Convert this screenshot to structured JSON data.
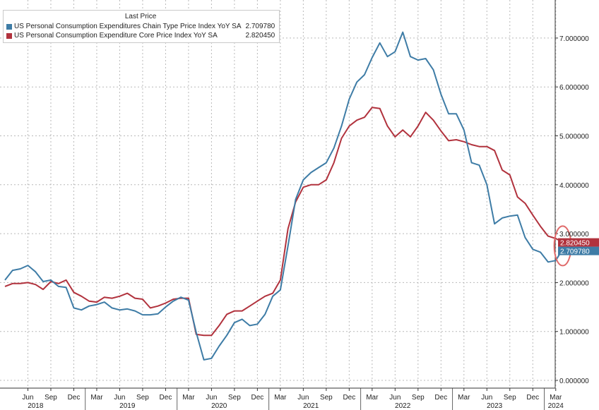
{
  "colors": {
    "headline": "#3e7ca6",
    "core": "#b1323d",
    "grid": "#b9b9b9",
    "highlight_circle": "#e06a6a"
  },
  "legend": {
    "header": "Last Price",
    "items": [
      {
        "name": "US Personal Consumption Expenditures Chain Type Price Index YoY SA",
        "value": "2.709780"
      },
      {
        "name": "US Personal Consumption Expenditure Core Price Index YoY SA",
        "value": "2.820450"
      }
    ]
  },
  "chart_data": {
    "type": "line",
    "x_units": "month index from 2018-03",
    "x_start": "2018-03",
    "x_end": "2024-03",
    "ylim": [
      0,
      7.4
    ],
    "yticks": [
      0,
      1,
      2,
      3,
      4,
      5,
      6,
      7
    ],
    "ytick_labels": [
      "0.000000",
      "1.000000",
      "2.000000",
      "3.000000",
      "4.000000",
      "5.000000",
      "6.000000",
      "7.000000"
    ],
    "grid": true,
    "legend_position": "top-left",
    "month_ticks": [
      {
        "label": "Jun",
        "m": 3
      },
      {
        "label": "Sep",
        "m": 6
      },
      {
        "label": "Dec",
        "m": 9
      },
      {
        "label": "Mar",
        "m": 12
      },
      {
        "label": "Jun",
        "m": 15
      },
      {
        "label": "Sep",
        "m": 18
      },
      {
        "label": "Dec",
        "m": 21
      },
      {
        "label": "Mar",
        "m": 24
      },
      {
        "label": "Jun",
        "m": 27
      },
      {
        "label": "Sep",
        "m": 30
      },
      {
        "label": "Dec",
        "m": 33
      },
      {
        "label": "Mar",
        "m": 36
      },
      {
        "label": "Jun",
        "m": 39
      },
      {
        "label": "Sep",
        "m": 42
      },
      {
        "label": "Dec",
        "m": 45
      },
      {
        "label": "Mar",
        "m": 48
      },
      {
        "label": "Jun",
        "m": 51
      },
      {
        "label": "Sep",
        "m": 54
      },
      {
        "label": "Dec",
        "m": 57
      },
      {
        "label": "Mar",
        "m": 60
      },
      {
        "label": "Jun",
        "m": 63
      },
      {
        "label": "Sep",
        "m": 66
      },
      {
        "label": "Dec",
        "m": 69
      },
      {
        "label": "Mar",
        "m": 72
      }
    ],
    "year_ticks": [
      {
        "label": "2018",
        "m": 4
      },
      {
        "label": "2019",
        "m": 16
      },
      {
        "label": "2020",
        "m": 28
      },
      {
        "label": "2021",
        "m": 40
      },
      {
        "label": "2022",
        "m": 52
      },
      {
        "label": "2023",
        "m": 64
      },
      {
        "label": "2024",
        "m": 72
      }
    ],
    "series": [
      {
        "name": "US Personal Consumption Expenditures Chain Type Price Index YoY SA",
        "last_value": "2.709780",
        "values": [
          2.05,
          2.25,
          2.28,
          2.35,
          2.22,
          2.02,
          2.05,
          1.92,
          1.9,
          1.48,
          1.44,
          1.52,
          1.55,
          1.6,
          1.48,
          1.44,
          1.46,
          1.42,
          1.34,
          1.34,
          1.36,
          1.5,
          1.62,
          1.7,
          1.64,
          0.98,
          0.42,
          0.45,
          0.7,
          0.92,
          1.18,
          1.25,
          1.12,
          1.15,
          1.35,
          1.72,
          1.85,
          2.75,
          3.7,
          4.1,
          4.25,
          4.35,
          4.45,
          4.75,
          5.2,
          5.75,
          6.1,
          6.25,
          6.6,
          6.9,
          6.62,
          6.72,
          7.12,
          6.62,
          6.55,
          6.58,
          6.35,
          5.85,
          5.45,
          5.45,
          5.12,
          4.45,
          4.4,
          4.0,
          3.2,
          3.32,
          3.36,
          3.38,
          2.92,
          2.68,
          2.62,
          2.42,
          2.45,
          2.71
        ]
      },
      {
        "name": "US Personal Consumption Expenditure Core Price Index YoY SA",
        "last_value": "2.820450",
        "values": [
          1.92,
          1.98,
          1.98,
          2.0,
          1.96,
          1.86,
          2.02,
          1.98,
          2.05,
          1.8,
          1.72,
          1.62,
          1.6,
          1.7,
          1.68,
          1.72,
          1.78,
          1.68,
          1.66,
          1.48,
          1.52,
          1.58,
          1.66,
          1.68,
          1.68,
          0.94,
          0.92,
          0.92,
          1.12,
          1.35,
          1.42,
          1.42,
          1.52,
          1.62,
          1.72,
          1.78,
          2.05,
          3.1,
          3.65,
          3.95,
          4.0,
          4.0,
          4.1,
          4.45,
          4.95,
          5.2,
          5.32,
          5.38,
          5.58,
          5.56,
          5.2,
          4.98,
          5.12,
          4.98,
          5.2,
          5.48,
          5.32,
          5.1,
          4.9,
          4.92,
          4.88,
          4.82,
          4.78,
          4.78,
          4.7,
          4.3,
          4.2,
          3.75,
          3.62,
          3.38,
          3.15,
          2.95,
          2.9,
          2.82
        ]
      }
    ]
  }
}
